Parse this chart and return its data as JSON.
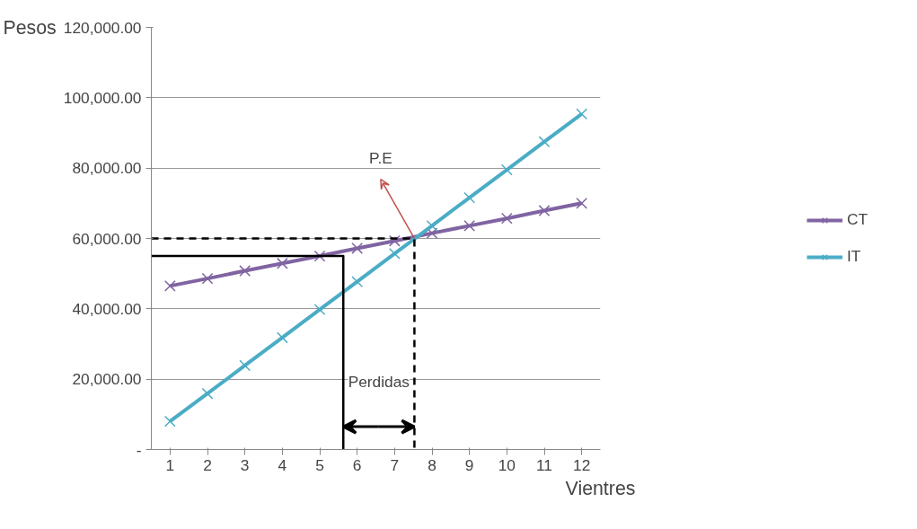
{
  "chart_data": {
    "type": "line",
    "ylabel": "Pesos",
    "xlabel": "Vientres",
    "x": [
      1,
      2,
      3,
      4,
      5,
      6,
      7,
      8,
      9,
      10,
      11,
      12
    ],
    "xlim": [
      0.5,
      12.5
    ],
    "xticks": [
      1,
      2,
      3,
      4,
      5,
      6,
      7,
      8,
      9,
      10,
      11,
      12
    ],
    "ylim": [
      0,
      120000
    ],
    "yticks": [
      {
        "value": 0,
        "label": "-"
      },
      {
        "value": 20000,
        "label": "20,000.00"
      },
      {
        "value": 40000,
        "label": "40,000.00"
      },
      {
        "value": 60000,
        "label": "60,000.00"
      },
      {
        "value": 80000,
        "label": "80,000.00"
      },
      {
        "value": 100000,
        "label": "100,000.00"
      },
      {
        "value": 120000,
        "label": "120,000.00"
      }
    ],
    "grid": "y",
    "legend": "right",
    "series": [
      {
        "name": "CT",
        "color": "#8064a2",
        "marker": "cross",
        "values": [
          46500,
          48600,
          50800,
          52900,
          55000,
          57200,
          59300,
          61500,
          63600,
          65700,
          67900,
          70000
        ]
      },
      {
        "name": "IT",
        "color": "#4bacc6",
        "marker": "cross",
        "values": [
          8000,
          15900,
          23900,
          31800,
          39800,
          47700,
          55700,
          63600,
          71600,
          79500,
          87500,
          95400
        ]
      },
      {
        "color": "#000000",
        "line_style": "dashed",
        "marker": "none",
        "x": [
          0.5,
          7.53,
          7.53
        ],
        "values": [
          60000,
          60000,
          0
        ]
      },
      {
        "color": "#000000",
        "line_style": "solid",
        "marker": "none",
        "x": [
          0.5,
          5.63,
          5.63
        ],
        "values": [
          55000,
          55000,
          0
        ]
      }
    ],
    "annotations": [
      {
        "text": "P.E",
        "x": 7.53,
        "y": 60000
      },
      "Perdidas"
    ]
  }
}
